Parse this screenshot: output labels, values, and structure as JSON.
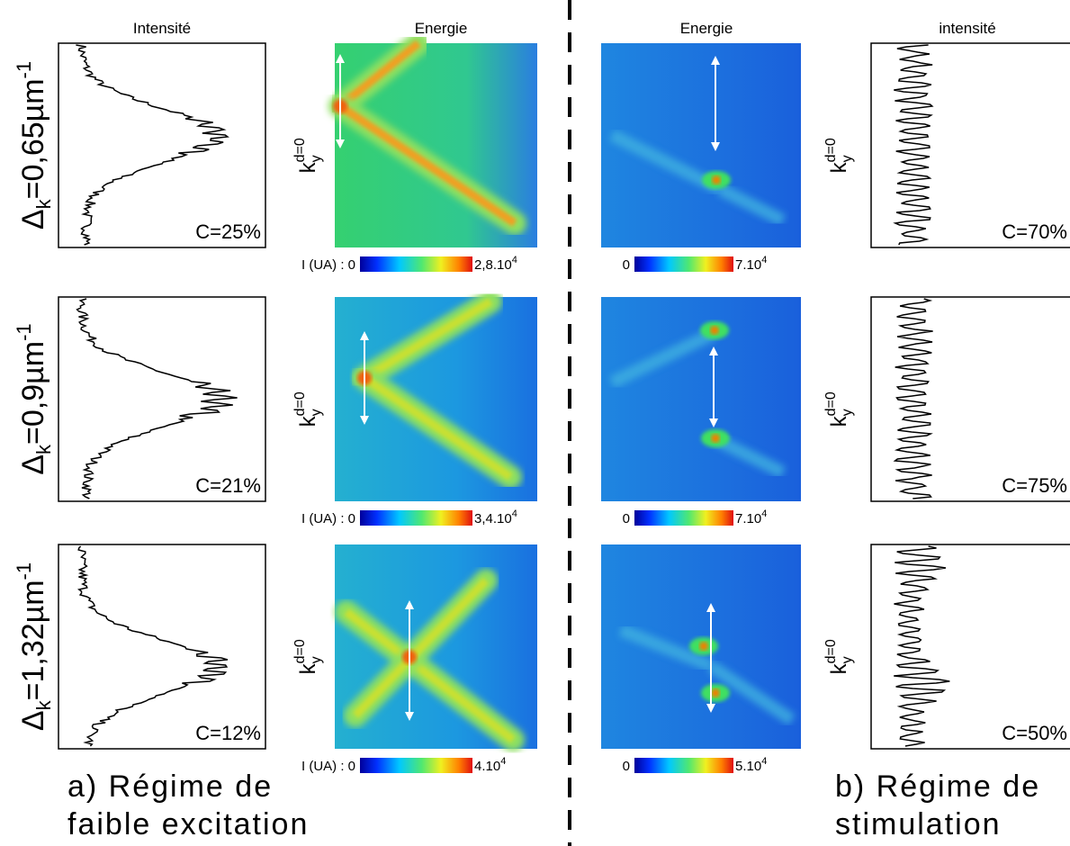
{
  "headers": {
    "left_intensity": "Intensité",
    "left_energy": "Energie",
    "right_energy": "Energie",
    "right_intensity": "intensité"
  },
  "rows": [
    {
      "delta": {
        "symbol": "Δ",
        "sub": "k",
        "value": "=0,65µm",
        "sup": "-1"
      },
      "left": {
        "contrast": "C=25%",
        "ky": {
          "base": "k",
          "sub": "y",
          "sup": "d=0"
        },
        "colorbar": {
          "min": "I (UA) : 0",
          "max": "2,8.10",
          "exp": "4"
        }
      },
      "right": {
        "contrast": "C=70%",
        "ky": {
          "base": "k",
          "sub": "y",
          "sup": "d=0"
        },
        "colorbar": {
          "min": "0",
          "max": "7.10",
          "exp": "4"
        }
      }
    },
    {
      "delta": {
        "symbol": "Δ",
        "sub": "k",
        "value": "=0,9µm",
        "sup": "-1"
      },
      "left": {
        "contrast": "C=21%",
        "ky": {
          "base": "k",
          "sub": "y",
          "sup": "d=0"
        },
        "colorbar": {
          "min": "I (UA) : 0",
          "max": "3,4.10",
          "exp": "4"
        }
      },
      "right": {
        "contrast": "C=75%",
        "ky": {
          "base": "k",
          "sub": "y",
          "sup": "d=0"
        },
        "colorbar": {
          "min": "0",
          "max": "7.10",
          "exp": "4"
        }
      }
    },
    {
      "delta": {
        "symbol": "Δ",
        "sub": "k",
        "value": "=1,32µm",
        "sup": "-1"
      },
      "left": {
        "contrast": "C=12%",
        "ky": {
          "base": "k",
          "sub": "y",
          "sup": "d=0"
        },
        "colorbar": {
          "min": "I (UA) : 0",
          "max": "4.10",
          "exp": "4"
        }
      },
      "right": {
        "contrast": "C=50%",
        "ky": {
          "base": "k",
          "sub": "y",
          "sup": "d=0"
        },
        "colorbar": {
          "min": "0",
          "max": "5.10",
          "exp": "4"
        }
      }
    }
  ],
  "captions": {
    "a": [
      "a) Régime de",
      "faible excitation"
    ],
    "b": [
      "b) Régime de",
      "stimulation"
    ]
  }
}
